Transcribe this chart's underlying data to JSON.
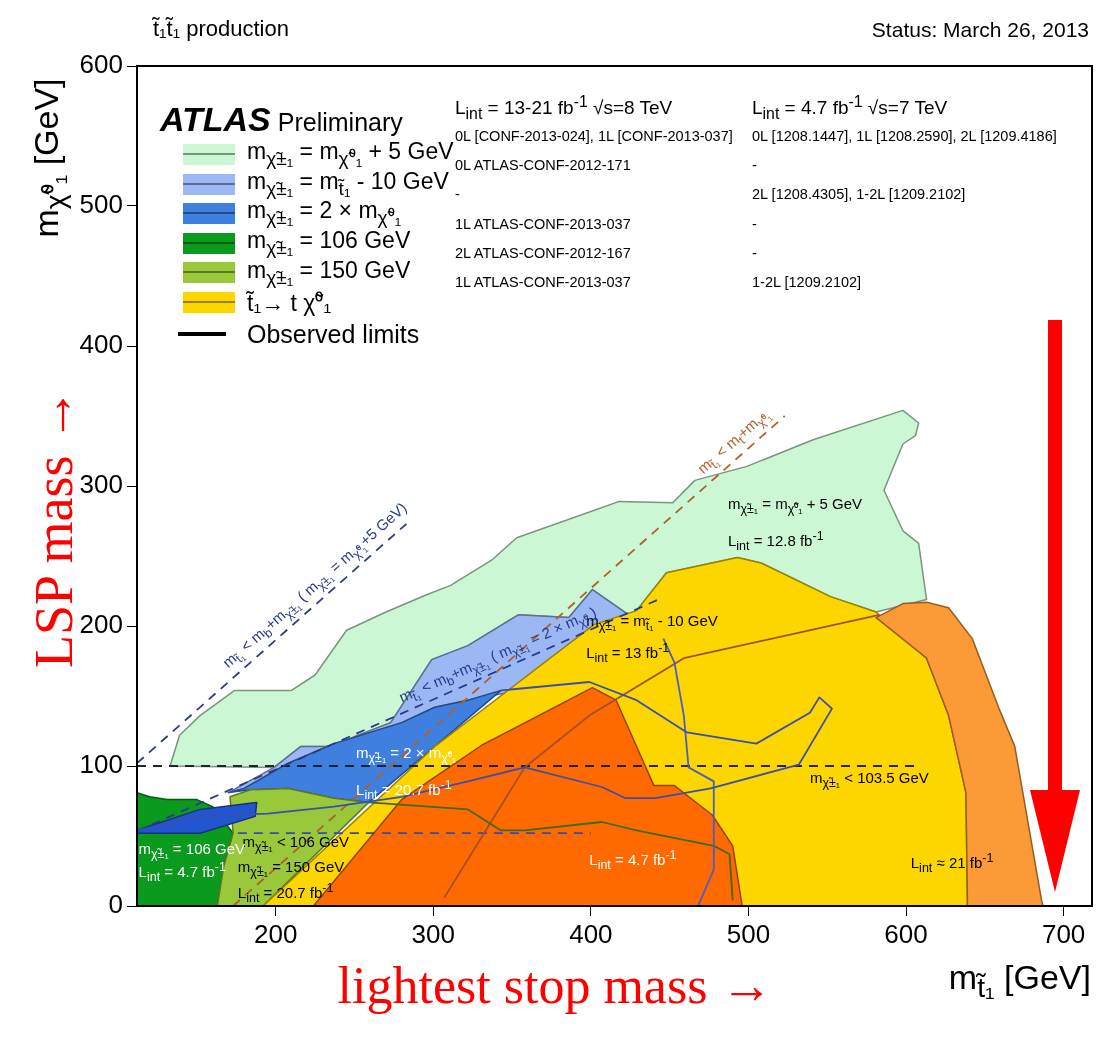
{
  "chart_data": {
    "type": "area",
    "title": "t̃₁t̃₁ production",
    "subtitle": "Status: March 26, 2013",
    "xlabel": "m$_{t̃₁}$ [GeV]",
    "ylabel": "m$_{χ̃⁰₁}$ [GeV]",
    "xlim": [
      112,
      718
    ],
    "xticks": [
      200,
      300,
      400,
      500,
      600,
      700
    ],
    "ylim": [
      0,
      600
    ],
    "yticks": [
      0,
      100,
      200,
      300,
      400,
      500,
      600
    ],
    "grid": false,
    "legend": "top left",
    "marker": "none",
    "series": [
      {
        "name": "m$_{χ̃±₁}$ = m$_{χ̃⁰₁}$ + 5 GeV",
        "color": "#ccf7d5",
        "x": [
          133,
          139,
          152,
          174,
          210,
          225,
          245,
          270,
          295,
          311,
          337,
          353,
          418,
          452,
          466,
          499,
          541,
          598,
          608,
          606,
          598,
          586,
          598,
          608,
          613,
          581,
          552,
          508,
          493,
          448,
          429,
          424,
          401,
          386,
          354,
          322,
          299,
          273,
          250,
          237,
          216,
          199
        ],
        "values": [
          100,
          122,
          136,
          154,
          154,
          165,
          197,
          210,
          222,
          229,
          247,
          263,
          289,
          288,
          304,
          314,
          333,
          354,
          345,
          336,
          330,
          297,
          268,
          259,
          219,
          210,
          221,
          245,
          249,
          238,
          211,
          208,
          226,
          206,
          208,
          186,
          176,
          131,
          121,
          114,
          114,
          99
        ]
      },
      {
        "name": "m$_{χ̃±₁}$ = m$_{t̃₁}$ - 10 GeV",
        "color": "#9bb8f5",
        "x": [
          170,
          199,
          216,
          237,
          250,
          273,
          299,
          322,
          354,
          386,
          401,
          424,
          345,
          322,
          301,
          280,
          237,
          208,
          180
        ],
        "values": [
          81,
          99,
          114,
          114,
          121,
          131,
          176,
          186,
          208,
          206,
          226,
          208,
          152,
          147,
          142,
          131,
          116,
          102,
          84
        ]
      },
      {
        "name": "m$_{χ̃±₁}$ = 2 × m$_{χ̃⁰₁}$",
        "color": "#3f7fe0",
        "x": [
          170,
          180,
          208,
          237,
          280,
          301,
          322,
          343,
          259,
          237,
          208,
          184
        ],
        "values": [
          81,
          84,
          102,
          116,
          131,
          142,
          147,
          154,
          74,
          77,
          84,
          83
        ]
      },
      {
        "name": "m$_{χ̃±₁}$ = 106 GeV",
        "color": "#0a9a1e",
        "x": [
          112,
          120,
          131,
          150,
          160,
          173,
          167,
          163,
          112
        ],
        "values": [
          81,
          78,
          76,
          76,
          71,
          52,
          28,
          0,
          0
        ]
      },
      {
        "name": "m$_{χ̃±₁}$ = 150 GeV",
        "color": "#99c93a",
        "x": [
          171,
          184,
          208,
          237,
          259,
          192,
          163,
          167,
          173
        ],
        "values": [
          78,
          83,
          84,
          77,
          74,
          0,
          0,
          28,
          52
        ]
      },
      {
        "color": "#2255d0",
        "x": [
          112,
          152,
          188,
          187,
          152,
          112
        ],
        "values": [
          54,
          69,
          74,
          64,
          52,
          52
        ]
      },
      {
        "name": "t̃₁→ t χ̃⁰₁",
        "color": "#fdd600",
        "x": [
          192,
          301,
          402,
          429,
          448,
          493,
          508,
          552,
          581,
          613,
          627,
          638,
          639
        ],
        "values": [
          0,
          114,
          201,
          211,
          238,
          249,
          245,
          221,
          210,
          177,
          136,
          81,
          0
        ]
      },
      {
        "color": "#fb9a36",
        "x": [
          581,
          598,
          613,
          627,
          642,
          659,
          669,
          686,
          687,
          639,
          638,
          627,
          613
        ],
        "values": [
          206,
          216,
          217,
          213,
          191,
          141,
          114,
          4,
          0,
          0,
          81,
          136,
          177
        ]
      },
      {
        "color": "#ff6a00",
        "x": [
          224,
          280,
          331,
          401,
          416,
          440,
          453,
          477,
          490,
          496
        ],
        "values": [
          0,
          76,
          115,
          156,
          147,
          86,
          86,
          65,
          43,
          0
        ]
      },
      {
        "type": "line",
        "color": "#3a4fb0",
        "x": [
          112,
          152,
          195,
          237,
          280,
          322,
          358,
          407,
          422,
          441,
          476,
          532,
          553,
          545,
          539,
          505,
          461,
          429,
          399,
          343
        ],
        "values": [
          54,
          64,
          66,
          71,
          78,
          89,
          99,
          85,
          77,
          77,
          84,
          101,
          141,
          149,
          138,
          116,
          124,
          147,
          160,
          154
        ]
      },
      {
        "type": "line",
        "color": "#4a60c0",
        "x": [
          446,
          453,
          459,
          462,
          478,
          478,
          468
        ],
        "values": [
          191,
          174,
          136,
          99,
          89,
          26,
          0
        ]
      },
      {
        "type": "line",
        "color": "#3d6b1f",
        "x": [
          259,
          322,
          343,
          358,
          407,
          429,
          478,
          488,
          490
        ],
        "values": [
          74,
          69,
          54,
          54,
          60,
          54,
          43,
          37,
          4
        ]
      },
      {
        "type": "line",
        "color": "#a0502a",
        "x": [
          307,
          358,
          399,
          459,
          583
        ],
        "values": [
          6,
          99,
          136,
          177,
          208
        ]
      },
      {
        "type": "line",
        "line_style": "dashed",
        "color": "#2a3a8a",
        "x": [
          112,
          283
        ],
        "values": [
          102,
          273
        ]
      },
      {
        "type": "line",
        "line_style": "dashed",
        "color": "#2a3a8a",
        "x": [
          112,
          445
        ],
        "values": [
          53.5,
          220
        ]
      },
      {
        "type": "line",
        "line_style": "dashed",
        "color": "#b0602a",
        "x": [
          173,
          523
        ],
        "values": [
          0,
          350
        ]
      },
      {
        "type": "line",
        "line_style": "dashed",
        "color": "#222233",
        "x": [
          112,
          606
        ],
        "values": [
          100,
          100
        ]
      },
      {
        "type": "line",
        "line_style": "dashed",
        "color": "#3a4aaa",
        "x": [
          176,
          400
        ],
        "values": [
          52,
          52
        ]
      }
    ],
    "annotations": [
      "ATLAS Preliminary",
      "Observed limits",
      "L$_{int}$ = 13-21 fb$^{-1}$ √s=8 TeV",
      "L$_{int}$ = 4.7 fb$^{-1}$ √s=7 TeV",
      "0L [CONF-2013-024], 1L [CONF-2013-037]",
      "0L [1208.1447], 1L [1208.2590], 2L [1209.4186]",
      "0L ATLAS-CONF-2012-171",
      "-",
      "-",
      "2L [1208.4305], 1-2L [1209.2102]",
      "1L ATLAS-CONF-2013-037",
      "-",
      "2L ATLAS-CONF-2012-167",
      "-",
      "1L ATLAS-CONF-2013-037",
      "1-2L [1209.2102]",
      "LSP mass →",
      "lightest stop mass →",
      "m$_{χ̃±₁}$ = m$_{χ̃⁰₁}$ + 5 GeV",
      "L$_{int}$ = 12.8 fb$^{-1}$",
      "m$_{χ̃±₁}$ = m$_{t̃₁}$ - 10 GeV",
      "L$_{int}$ = 13 fb$^{-1}$",
      "m$_{χ̃±₁}$ = 2 × m$_{χ̃⁰₁}$",
      "L$_{int}$ = 20.7 fb$^{-1}$",
      "m$_{χ̃±₁}$ < 106 GeV",
      "m$_{χ̃±₁}$ = 106 GeV",
      "L$_{int}$ = 4.7 fb$^{-1}$",
      "m$_{χ̃±₁}$ = 150 GeV",
      "L$_{int}$ = 20.7 fb$^{-1}$",
      "L$_{int}$ = 4.7 fb$^{-1}$",
      "m$_{χ̃±₁}$ < 103.5 GeV",
      "L$_{int}$ ≈ 21 fb$^{-1}$",
      "m$_{t̃₁}$ < m$_{b}$+m$_{χ̃±₁}$ ( m$_{χ̃±₁}$ = m$_{χ̃⁰₁}$+5 GeV)",
      "m$_{t̃₁}$ < m$_{b}$+m$_{χ̃±₁}$ ( m$_{χ̃±₁}$ = 2 × m$_{χ̃⁰₁}$)",
      "m$_{t̃₁}$ < m$_{t}$+m$_{χ̃⁰₁}$"
    ]
  }
}
